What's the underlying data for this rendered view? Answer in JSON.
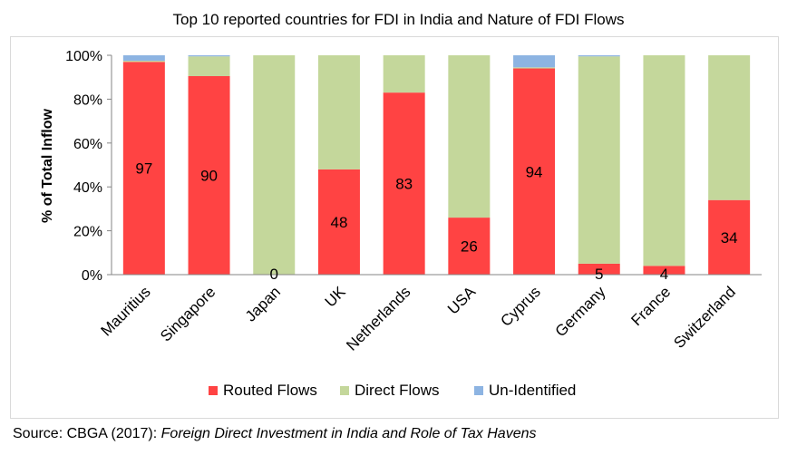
{
  "chart_data": {
    "type": "bar",
    "stacked": true,
    "percent": true,
    "title": "Top 10 reported countries for FDI in India and Nature of FDI Flows",
    "xlabel": "",
    "ylabel": "% of Total Inflow",
    "ylim": [
      0,
      100
    ],
    "yticks": [
      "0%",
      "20%",
      "40%",
      "60%",
      "80%",
      "100%"
    ],
    "categories": [
      "Mauritius",
      "Singapore",
      "Japan",
      "UK",
      "Netherlands",
      "USA",
      "Cyprus",
      "Germany",
      "France",
      "Switzerland"
    ],
    "series": [
      {
        "name": "Routed Flows",
        "color": "#ff4343",
        "values": [
          97,
          90.5,
          0,
          48,
          83,
          26,
          94,
          5,
          4,
          34
        ],
        "labels": [
          "97",
          "90",
          "0",
          "48",
          "83",
          "26",
          "94",
          "5",
          "4",
          "34"
        ]
      },
      {
        "name": "Direct Flows",
        "color": "#c4d79b",
        "values": [
          0.5,
          9,
          100,
          52,
          17,
          74,
          0.5,
          94.5,
          96,
          66
        ]
      },
      {
        "name": "Un-Identified",
        "color": "#8db4e2",
        "values": [
          2.5,
          0.5,
          0,
          0,
          0,
          0,
          5.5,
          0.5,
          0,
          0
        ]
      }
    ],
    "legend_position": "bottom",
    "grid": false
  },
  "source": {
    "prefix": "Source: CBGA (2017): ",
    "citation": "Foreign Direct Investment in India and Role of Tax Havens"
  }
}
